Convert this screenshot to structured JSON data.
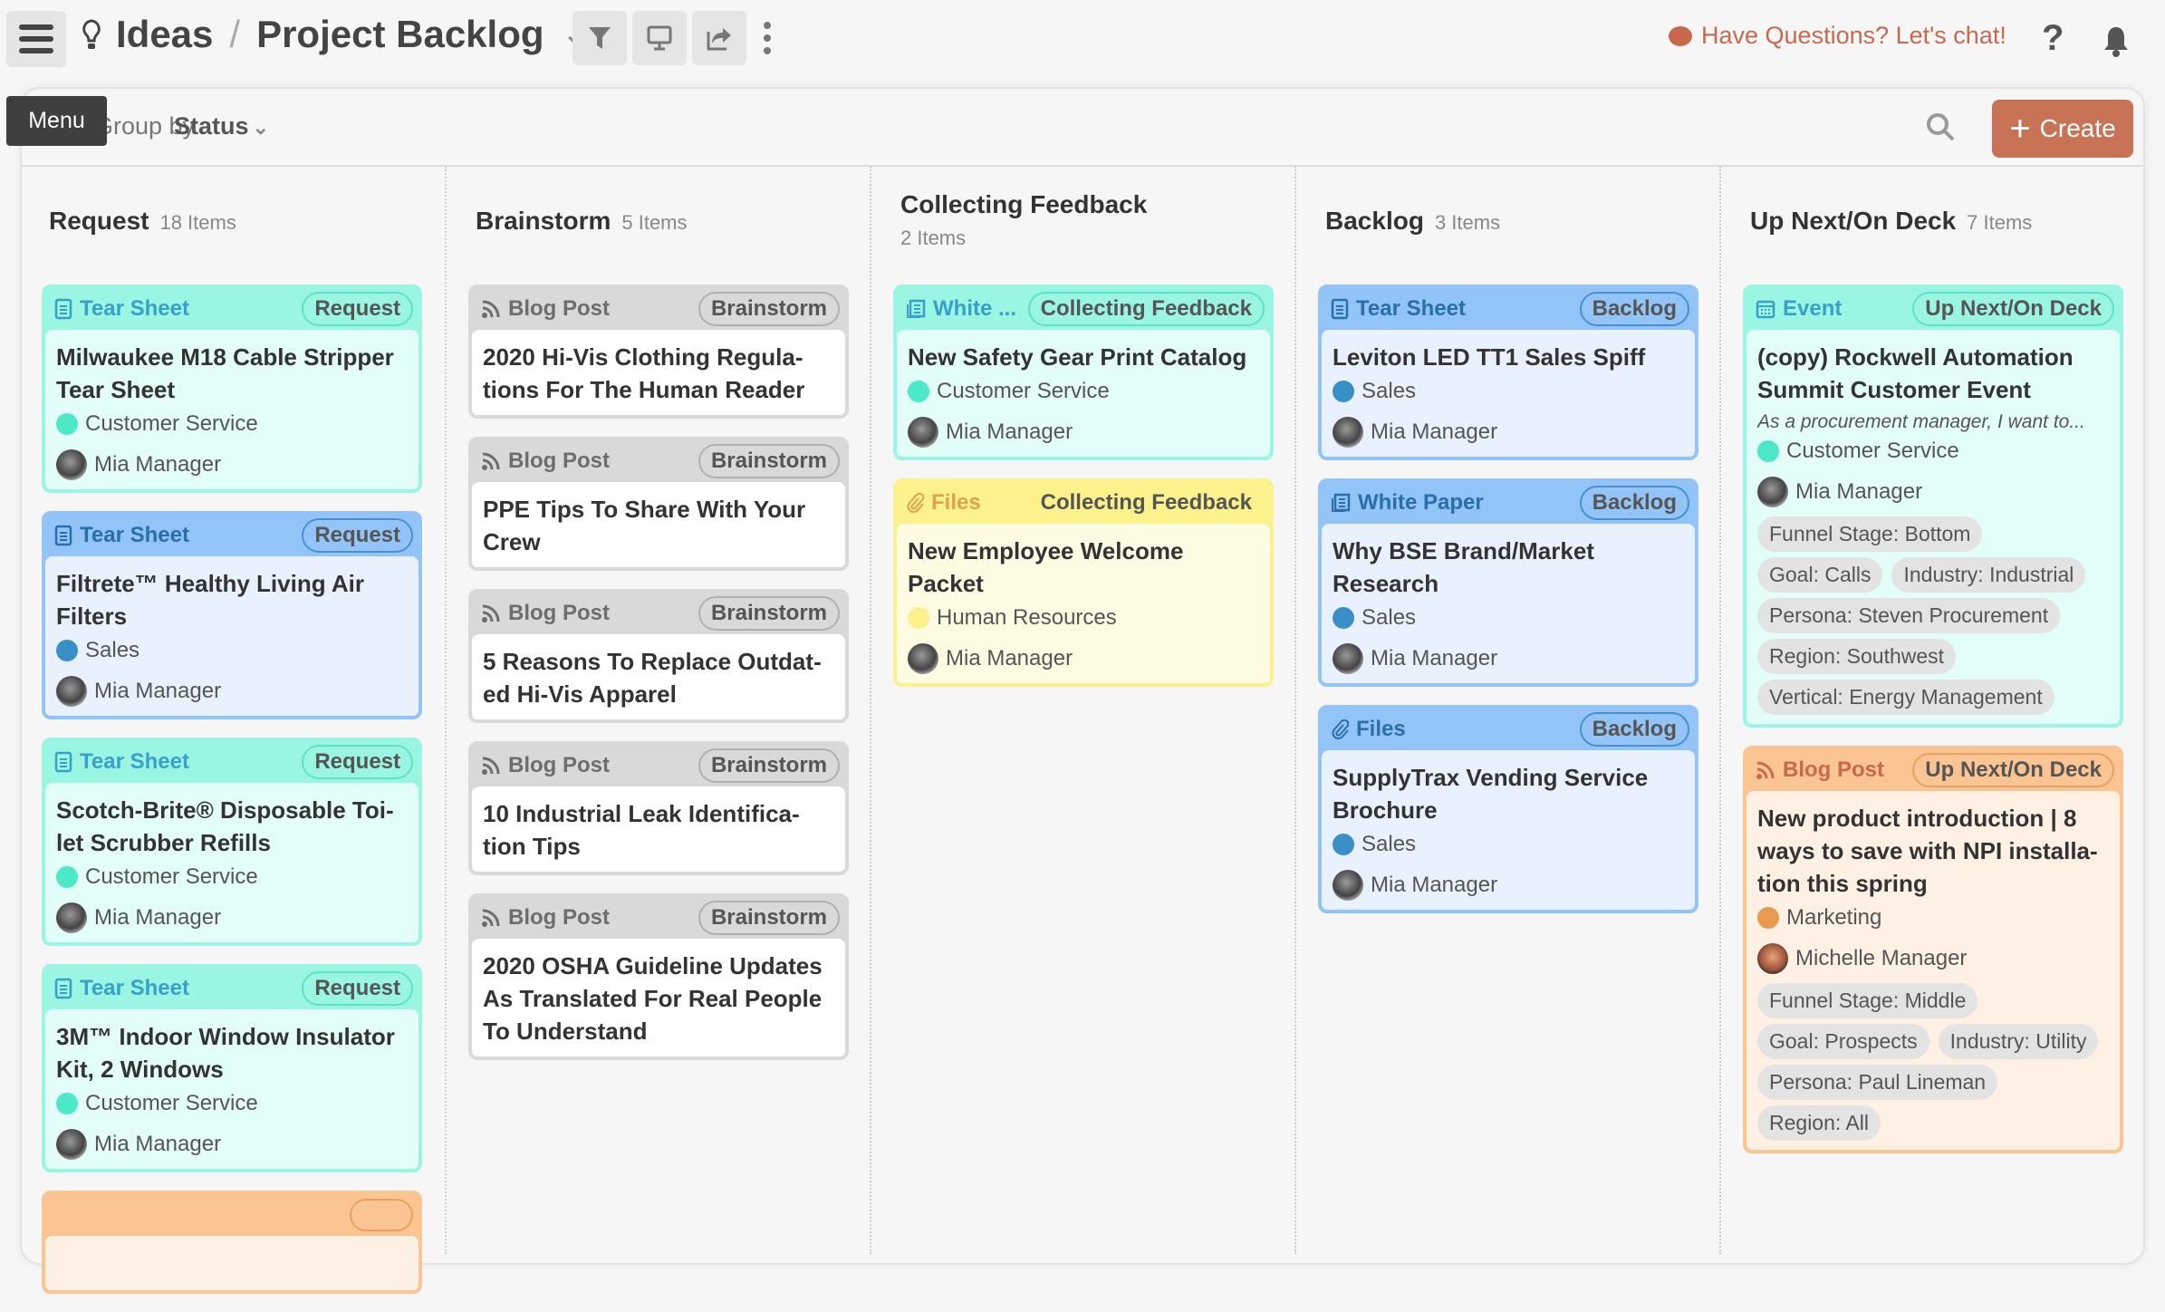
{
  "header": {
    "menu_icon": "hamburger-icon",
    "section": "Ideas",
    "separator": "/",
    "board": "Project Backlog",
    "chat_label": "Have Questions? Let's chat!",
    "help_label": "?",
    "menu_tooltip": "Menu"
  },
  "toolbar": {
    "group_by_label": "Group by",
    "group_by_value": "Status",
    "create_label": "Create",
    "create_color": "#c87256"
  },
  "themes": {
    "teal": {
      "head": "#9af5e2",
      "body": "#e3fdf8",
      "type": "#3a9fc9",
      "pill": "#5fe2c8"
    },
    "blue": {
      "head": "#93c4f8",
      "body": "#e8f1fd",
      "type": "#2b6eaa",
      "pill": "#4a8fd0"
    },
    "gray": {
      "head": "#d9d9d9",
      "body": "#ffffff",
      "type": "#6d6d6d",
      "pill": "#b0b0b0"
    },
    "yellow": {
      "head": "#fbf28d",
      "body": "#fefbe3",
      "type": "#e0a050",
      "pill": "transparent"
    },
    "orange": {
      "head": "#fac592",
      "body": "#fef1e4",
      "type": "#c8694e",
      "pill": "#e8a060"
    }
  },
  "columns": [
    {
      "name": "Request",
      "count": "18 Items",
      "cards": [
        {
          "theme": "teal",
          "type": "Tear Sheet",
          "type_icon": "tear-sheet-icon",
          "status": "Request",
          "title": "Milwaukee M18 Cable Stripper Tear Sheet",
          "team": "Customer Service",
          "team_color": "#4de8c8",
          "owner": "Mia Manager"
        },
        {
          "theme": "blue",
          "type": "Tear Sheet",
          "type_icon": "tear-sheet-icon",
          "status": "Request",
          "title": "Filtrete™ Healthy Living Air Filters",
          "team": "Sales",
          "team_color": "#3a8fc8",
          "owner": "Mia Manager"
        },
        {
          "theme": "teal",
          "type": "Tear Sheet",
          "type_icon": "tear-sheet-icon",
          "status": "Request",
          "title": "Scotch-Brite® Disposable Toi­let Scrubber Refills",
          "team": "Customer Service",
          "team_color": "#4de8c8",
          "owner": "Mia Manager"
        },
        {
          "theme": "teal",
          "type": "Tear Sheet",
          "type_icon": "tear-sheet-icon",
          "status": "Request",
          "title": "3M™ Indoor Window Insulator Kit, 2 Windows",
          "team": "Customer Service",
          "team_color": "#4de8c8",
          "owner": "Mia Manager"
        },
        {
          "theme": "orange",
          "type": "",
          "type_icon": "",
          "status": ""
        }
      ]
    },
    {
      "name": "Brainstorm",
      "count": "5 Items",
      "cards": [
        {
          "theme": "gray",
          "type": "Blog Post",
          "type_icon": "rss-icon",
          "status": "Brainstorm",
          "title": "2020 Hi-Vis Clothing Regula­tions For The Human Reader"
        },
        {
          "theme": "gray",
          "type": "Blog Post",
          "type_icon": "rss-icon",
          "status": "Brainstorm",
          "title": "PPE Tips To Share With Your Crew"
        },
        {
          "theme": "gray",
          "type": "Blog Post",
          "type_icon": "rss-icon",
          "status": "Brainstorm",
          "title": "5 Reasons To Replace Outdat­ed Hi-Vis Apparel"
        },
        {
          "theme": "gray",
          "type": "Blog Post",
          "type_icon": "rss-icon",
          "status": "Brainstorm",
          "title": "10 Industrial Leak Identifica­tion Tips"
        },
        {
          "theme": "gray",
          "type": "Blog Post",
          "type_icon": "rss-icon",
          "status": "Brainstorm",
          "title": "2020 OSHA Guideline Updates As Translated For Real People To Understand"
        }
      ]
    },
    {
      "name": "Collecting Feedback",
      "count": "2 Items",
      "cards": [
        {
          "theme": "teal",
          "type": "White ...",
          "type_icon": "white-paper-icon",
          "status": "Collecting Feedback",
          "title": "New Safety Gear Print Catalog",
          "team": "Customer Service",
          "team_color": "#4de8c8",
          "owner": "Mia Manager"
        },
        {
          "theme": "yellow",
          "type": "Files",
          "type_icon": "paperclip-icon",
          "status": "Collecting Feedback",
          "title": "New Employee Welcome Packet",
          "team": "Human Resources",
          "team_color": "#fbf08a",
          "owner": "Mia Manager"
        }
      ]
    },
    {
      "name": "Backlog",
      "count": "3 Items",
      "cards": [
        {
          "theme": "blue",
          "type": "Tear Sheet",
          "type_icon": "tear-sheet-icon",
          "status": "Backlog",
          "title": "Leviton LED TT1 Sales Spiff",
          "team": "Sales",
          "team_color": "#3a8fc8",
          "owner": "Mia Manager"
        },
        {
          "theme": "blue",
          "type": "White Paper",
          "type_icon": "white-paper-icon",
          "status": "Backlog",
          "title": "Why BSE Brand/Market Research",
          "team": "Sales",
          "team_color": "#3a8fc8",
          "owner": "Mia Manager"
        },
        {
          "theme": "blue",
          "type": "Files",
          "type_icon": "paperclip-icon",
          "status": "Backlog",
          "title": "SupplyTrax Vending Service Brochure",
          "team": "Sales",
          "team_color": "#3a8fc8",
          "owner": "Mia Manager"
        }
      ]
    },
    {
      "name": "Up Next/On Deck",
      "count": "7 Items",
      "cards": [
        {
          "theme": "teal",
          "type": "Event",
          "type_icon": "calendar-icon",
          "status": "Up Next/On Deck",
          "title": "(copy) Rockwell Automation Summit Customer Event",
          "description": "As a procurement manager, I want to...",
          "team": "Customer Service",
          "team_color": "#4de8c8",
          "owner": "Mia Manager",
          "tags": [
            "Funnel Stage: Bottom",
            "Goal: Calls",
            "Industry: Industrial",
            "Persona: Steven Procurement",
            "Region: Southwest",
            "Vertical: Energy Management"
          ]
        },
        {
          "theme": "orange",
          "type": "Blog Post",
          "type_icon": "rss-icon",
          "status": "Up Next/On Deck",
          "title": "New product introduction | 8 ways to save with NPI installa­tion this spring",
          "team": "Marketing",
          "team_color": "#e89a50",
          "owner": "Michelle Manager",
          "owner_avatar": "m",
          "tags": [
            "Funnel Stage: Middle",
            "Goal: Prospects",
            "Industry: Utility",
            "Persona: Paul Lineman",
            "Region: All"
          ]
        }
      ]
    }
  ]
}
